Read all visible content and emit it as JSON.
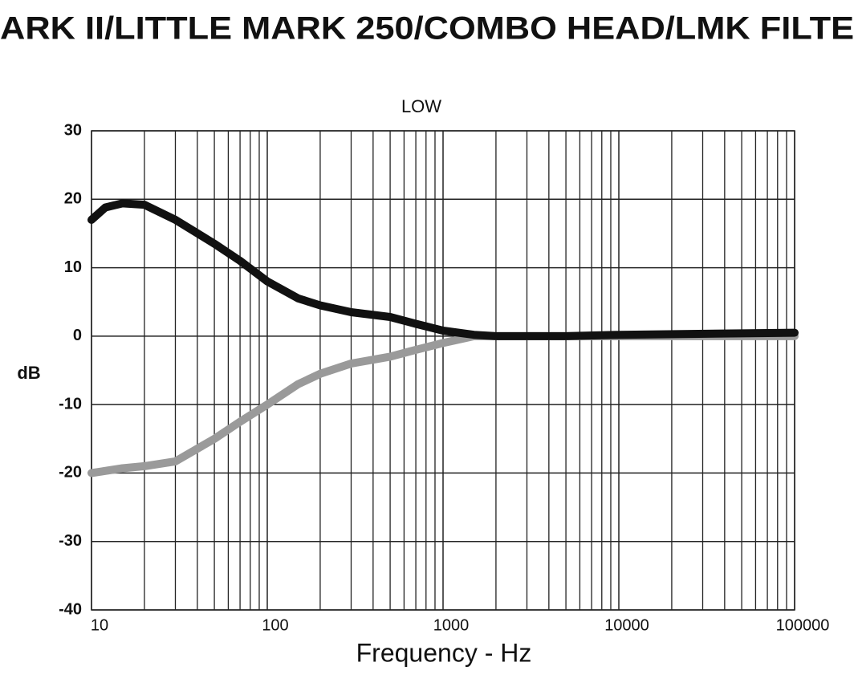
{
  "chart_data": {
    "type": "line",
    "title": "ARK II/LITTLE MARK 250/COMBO HEAD/LMK FILTE",
    "subtitle": "LOW",
    "x_label": "Frequency - Hz",
    "y_label": "dB",
    "x_scale": "log",
    "grid": true,
    "xlim": [
      10,
      100000
    ],
    "xticks": [
      10,
      100,
      1000,
      10000,
      100000
    ],
    "ylim": [
      -40,
      30
    ],
    "yticks": [
      -40,
      -30,
      -20,
      -10,
      0,
      10,
      20,
      30
    ],
    "series": [
      {
        "color": "#111111",
        "x": [
          10,
          12,
          15,
          20,
          30,
          50,
          70,
          100,
          150,
          200,
          300,
          500,
          700,
          1000,
          1500,
          2000,
          5000,
          10000,
          100000
        ],
        "values": [
          17,
          18.8,
          19.4,
          19.2,
          17,
          13.5,
          11,
          8,
          5.5,
          4.5,
          3.5,
          2.8,
          1.8,
          0.8,
          0.2,
          0,
          0,
          0.2,
          0.5
        ]
      },
      {
        "color": "#9a9a9a",
        "x": [
          10,
          15,
          20,
          30,
          50,
          70,
          100,
          150,
          200,
          300,
          500,
          700,
          1000,
          1500,
          100000
        ],
        "values": [
          -20,
          -19.3,
          -19,
          -18.3,
          -15,
          -12.5,
          -10,
          -7,
          -5.5,
          -4,
          -3,
          -2,
          -1,
          0,
          0
        ]
      }
    ]
  }
}
